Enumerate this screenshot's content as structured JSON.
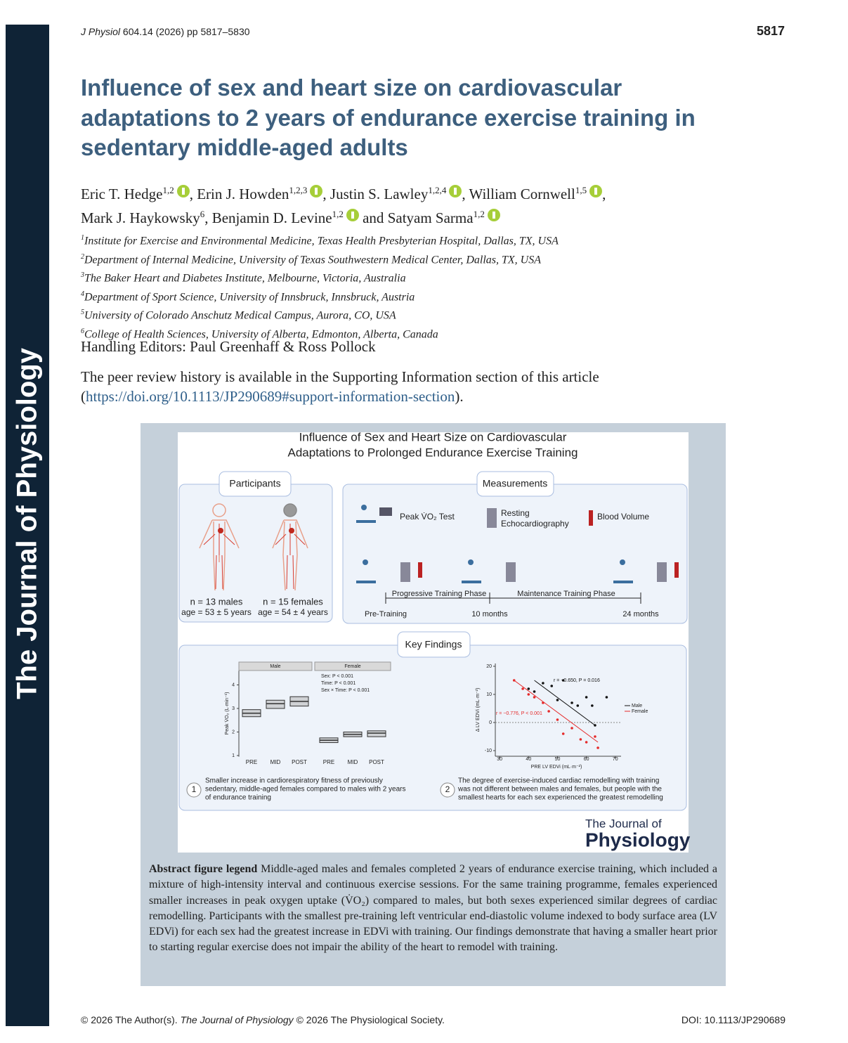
{
  "sidebar": {
    "journal": "The Journal of Physiology"
  },
  "header": {
    "journal": "J Physiol",
    "ref": "604.14 (2026) pp 5817–5830",
    "page_number": "5817"
  },
  "title": [
    "Influence of sex and heart size on cardiovascular",
    "adaptations to 2 years of endurance exercise training in",
    "sedentary middle-aged adults"
  ],
  "authors": [
    [
      {
        "name": "Eric T. Hedge",
        "sup": "1,2",
        "orcid": true,
        "sep": ", "
      },
      {
        "name": "Erin J. Howden",
        "sup": "1,2,3",
        "orcid": true,
        "sep": ", "
      },
      {
        "name": "Justin S. Lawley",
        "sup": "1,2,4",
        "orcid": true,
        "sep": ", "
      },
      {
        "name": "William Cornwell",
        "sup": "1,5",
        "orcid": true,
        "sep": ","
      }
    ],
    [
      {
        "name": "Mark J. Haykowsky",
        "sup": "6",
        "orcid": false,
        "sep": ", "
      },
      {
        "name": "Benjamin D. Levine",
        "sup": "1,2",
        "orcid": true,
        "sep": " and "
      },
      {
        "name": "Satyam Sarma",
        "sup": "1,2",
        "orcid": true,
        "sep": ""
      }
    ]
  ],
  "affiliations": [
    {
      "num": "1",
      "text": "Institute for Exercise and Environmental Medicine, Texas Health Presbyterian Hospital, Dallas, TX, USA"
    },
    {
      "num": "2",
      "text": "Department of Internal Medicine, University of Texas Southwestern Medical Center, Dallas, TX, USA"
    },
    {
      "num": "3",
      "text": "The Baker Heart and Diabetes Institute, Melbourne, Victoria, Australia"
    },
    {
      "num": "4",
      "text": "Department of Sport Science, University of Innsbruck, Innsbruck, Austria"
    },
    {
      "num": "5",
      "text": "University of Colorado Anschutz Medical Campus, Aurora, CO, USA"
    },
    {
      "num": "6",
      "text": "College of Health Sciences, University of Alberta, Edmonton, Alberta, Canada"
    }
  ],
  "handling_editors": "Handling Editors: Paul Greenhaff & Ross Pollock",
  "peer_review": {
    "text": "The peer review history is available in the Supporting Information section of this article",
    "open": "(",
    "link": "https://doi.org/10.1113/JP290689#support-information-section",
    "close": ")."
  },
  "figure": {
    "title": [
      "Influence of Sex and Heart Size on Cardiovascular",
      "Adaptations to Prolonged Endurance Exercise Training"
    ],
    "participants": {
      "label": "Participants",
      "groups": [
        {
          "n": "n = 13 males",
          "age": "age = 53 ± 5 years"
        },
        {
          "n": "n = 15 females",
          "age": "age = 54 ± 4 years"
        }
      ]
    },
    "measurements": {
      "label": "Measurements",
      "items": [
        [
          "Peak V̇O₂ Test"
        ],
        [
          "Resting",
          "Echocardiography"
        ],
        [
          "Blood Volume"
        ]
      ],
      "phases": [
        "Progressive Training Phase",
        "Maintenance Training Phase"
      ],
      "timepoints": [
        "Pre-Training",
        "10 months",
        "24 months"
      ]
    },
    "key_findings": {
      "label": "Key Findings",
      "finding1": {
        "facets": [
          "Male",
          "Female"
        ],
        "stats": [
          "Sex: P < 0.001",
          "Time: P < 0.001",
          "Sex × Time: P < 0.001"
        ],
        "ylabel": "Peak V̇O₂ (L·min⁻¹)",
        "ylim": [
          0.95,
          4.6
        ],
        "yticks": [
          1,
          2,
          3,
          4
        ],
        "categories": [
          "PRE",
          "MID",
          "POST"
        ],
        "boxes": [
          [
            [
              2.65,
              2.8,
              2.95
            ],
            [
              3.0,
              3.2,
              3.35
            ],
            [
              3.1,
              3.3,
              3.5
            ]
          ],
          [
            [
              1.55,
              1.65,
              1.75
            ],
            [
              1.8,
              1.9,
              2.0
            ],
            [
              1.8,
              1.95,
              2.05
            ]
          ]
        ],
        "caption": [
          "Smaller increase in cardiorespiratory fitness of previously",
          "sedentary, middle-aged females compared to males with 2 years",
          "of endurance training"
        ],
        "number": "1"
      },
      "finding2": {
        "xlabel": "PRE LV EDVi (mL·m⁻²)",
        "ylabel": "Δ LV EDVi (mL·m⁻²)",
        "xlim": [
          28.5,
          72
        ],
        "ylim": [
          -12,
          21
        ],
        "xticks": [
          30,
          40,
          50,
          60,
          70
        ],
        "yticks": [
          20,
          10,
          0,
          -10
        ],
        "series": [
          {
            "name": "Male",
            "color": "#111111",
            "x": [
              40,
              42,
              45,
              48,
              50,
              52,
              55,
              57,
              60,
              62,
              67,
              63
            ],
            "y": [
              12,
              11,
              14,
              13,
              8,
              15,
              7,
              6,
              9,
              6,
              9,
              -1
            ],
            "fit": [
              [
                42,
                15
              ],
              [
                63,
                -1
              ]
            ],
            "annotation": "r = −0.650, P = 0.016"
          },
          {
            "name": "Female",
            "color": "#e52a2a",
            "x": [
              35,
              38,
              40,
              42,
              45,
              47,
              50,
              52,
              55,
              58,
              60,
              63,
              64
            ],
            "y": [
              15,
              12,
              10,
              9,
              7,
              4,
              1,
              -4,
              -2,
              -6,
              -7,
              -5,
              -9
            ],
            "fit": [
              [
                35,
                15
              ],
              [
                64,
                -7
              ]
            ],
            "annotation": "r = −0.776, P < 0.001"
          }
        ],
        "caption": [
          "The degree of exercise-induced cardiac remodelling with training",
          "was not different between males and females, but people with the",
          "smallest hearts for each sex experienced the greatest remodelling"
        ],
        "number": "2"
      }
    },
    "logo": [
      "The Journal of",
      "Physiology"
    ],
    "legend": {
      "label": "Abstract figure legend",
      "text": "Middle-aged males and females completed 2 years of endurance exercise training, which included a mixture of high-intensity interval and continuous exercise sessions. For the same training programme, females experienced smaller increases in peak oxygen uptake (V̇O₂) compared to males, but both sexes experienced similar degrees of cardiac remodelling. Participants with the smallest pre-training left ventricular end-diastolic volume indexed to body surface area (LV EDVi) for each sex had the greatest increase in EDVi with training. Our findings demonstrate that having a smaller heart prior to starting regular exercise does not impair the ability of the heart to remodel with training."
    }
  },
  "footer": {
    "copyright": "© 2026 The Author(s).",
    "journal": "The Journal of Physiology",
    "society": "© 2026 The Physiological Society.",
    "doi": "DOI: 10.1113/JP290689"
  }
}
